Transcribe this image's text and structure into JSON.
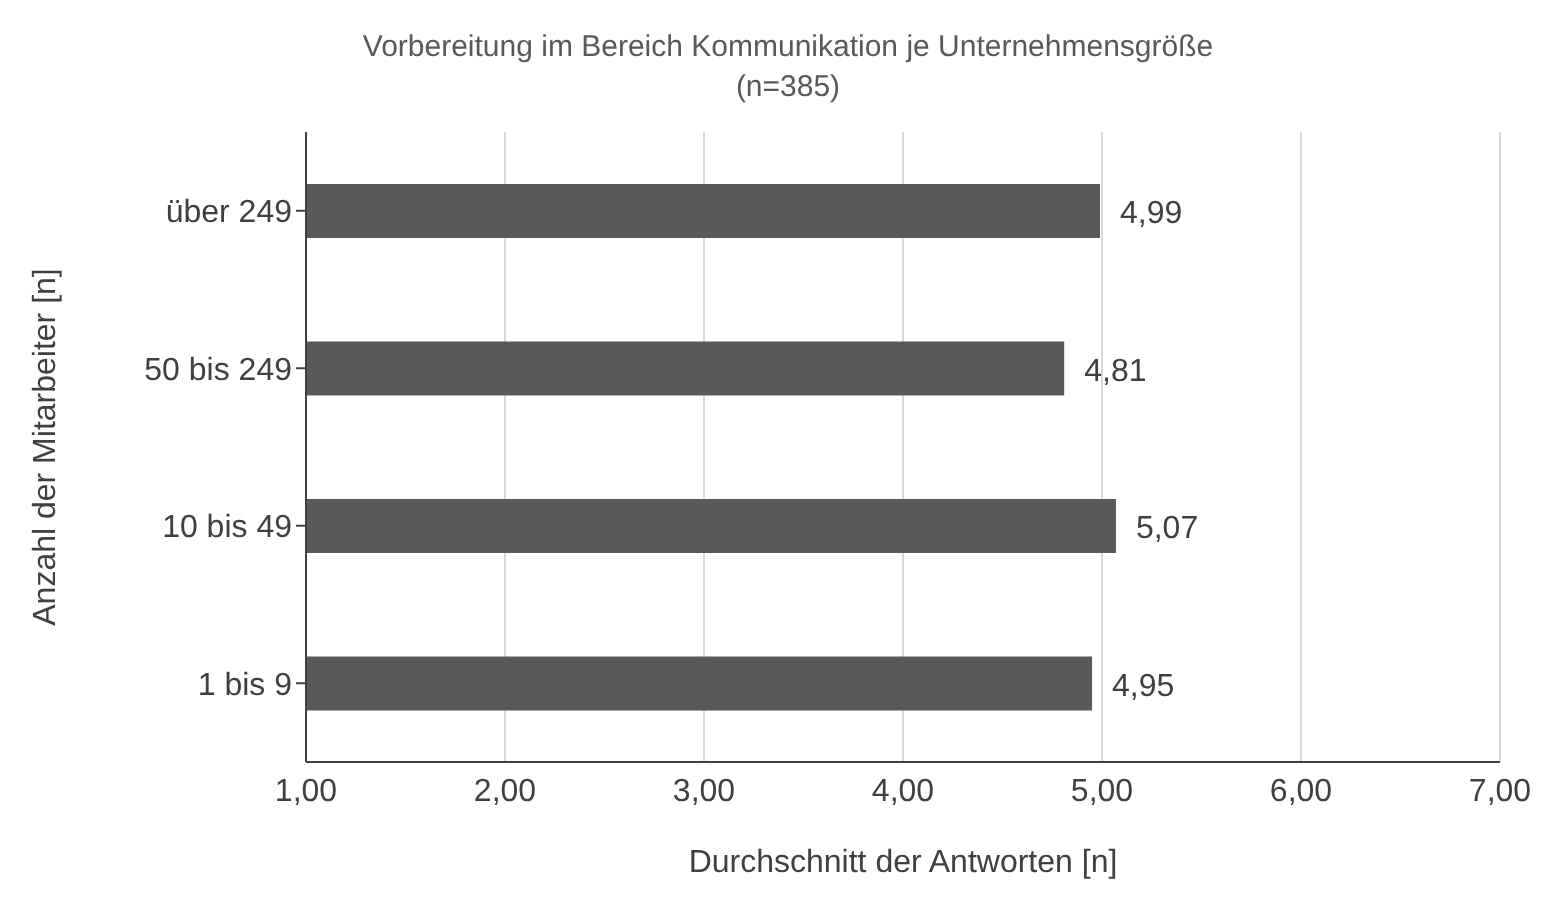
{
  "chart_data": {
    "type": "bar",
    "orientation": "horizontal",
    "title": "Vorbereitung im Bereich Kommunikation je Unternehmensgröße",
    "subtitle": "(n=385)",
    "xlabel": "Durchschnitt der Antworten [n]",
    "ylabel": "Anzahl der Mitarbeiter [n]",
    "categories": [
      "über 249",
      "50 bis 249",
      "10 bis 49",
      "1 bis 9"
    ],
    "values": [
      4.99,
      4.81,
      5.07,
      4.95
    ],
    "value_labels": [
      "4,99",
      "4,81",
      "5,07",
      "4,95"
    ],
    "color": "#595959",
    "xlim": [
      1,
      7
    ],
    "xticks": [
      {
        "value": 1,
        "label": "1,00"
      },
      {
        "value": 2,
        "label": "2,00"
      },
      {
        "value": 3,
        "label": "3,00"
      },
      {
        "value": 4,
        "label": "4,00"
      },
      {
        "value": 5,
        "label": "5,00"
      },
      {
        "value": 6,
        "label": "6,00"
      },
      {
        "value": 7,
        "label": "7,00"
      }
    ],
    "grid": "x"
  }
}
